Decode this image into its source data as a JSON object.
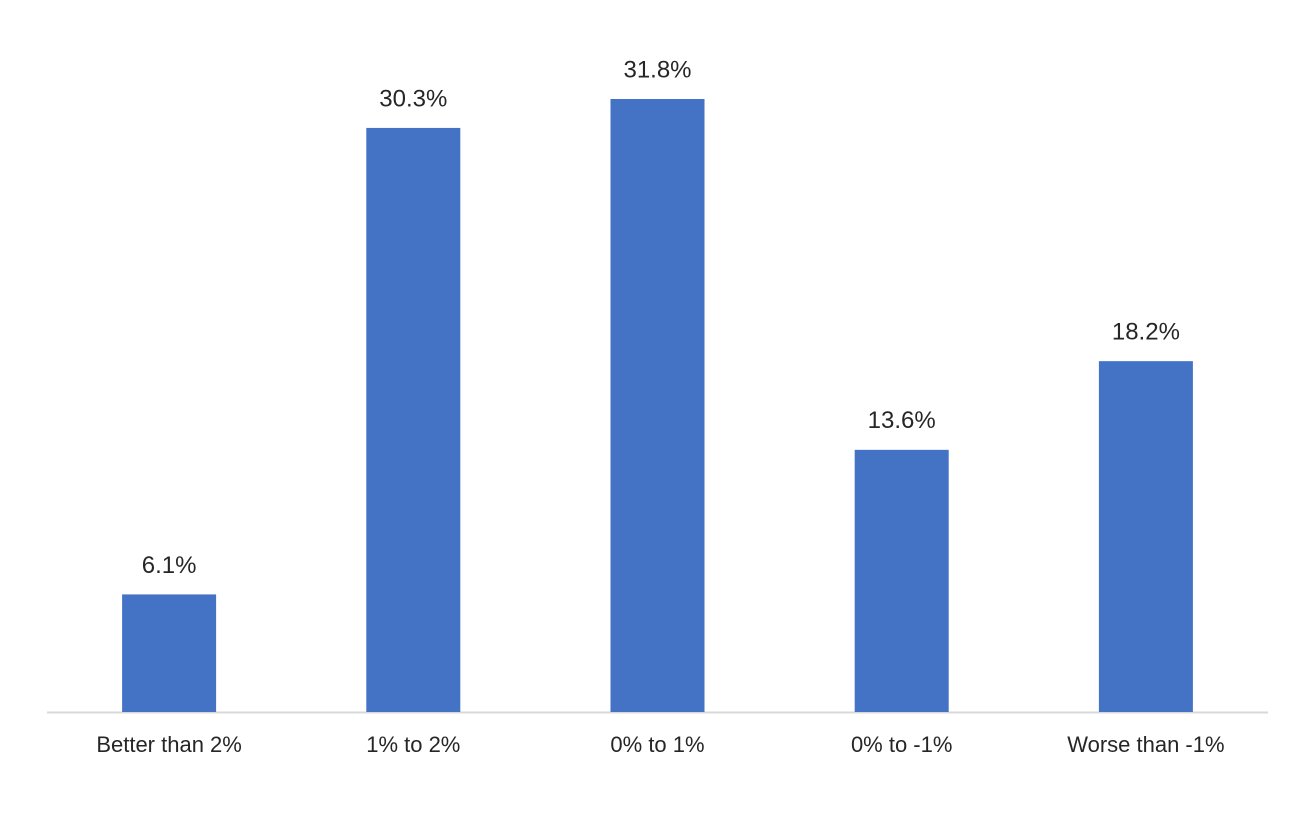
{
  "chart_data": {
    "type": "bar",
    "categories": [
      "Better than 2%",
      "1% to 2%",
      "0% to 1%",
      "0% to -1%",
      "Worse than -1%"
    ],
    "values": [
      6.1,
      30.3,
      31.8,
      13.6,
      18.2
    ],
    "value_labels": [
      "6.1%",
      "30.3%",
      "31.8%",
      "13.6%",
      "18.2%"
    ],
    "color": "#4472c4"
  }
}
